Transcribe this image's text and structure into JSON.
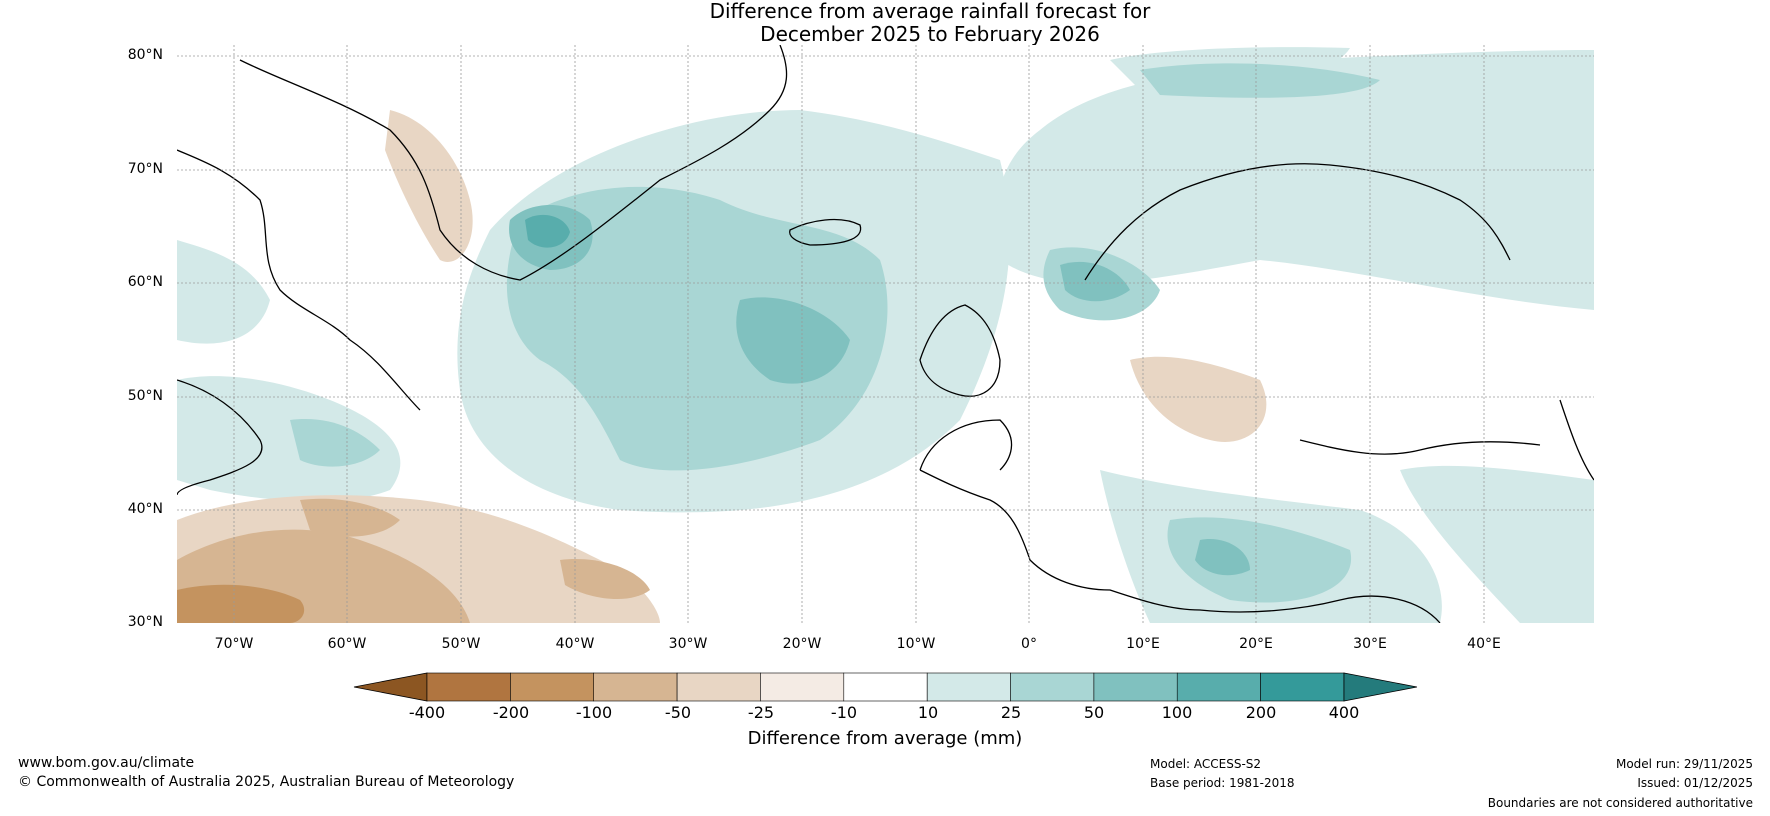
{
  "title": {
    "line1": "Difference from average rainfall forecast for",
    "line2": "December 2025 to February 2026"
  },
  "lat_labels": [
    "80°N",
    "70°N",
    "60°N",
    "50°N",
    "40°N",
    "30°N"
  ],
  "lon_labels": [
    "70°W",
    "60°W",
    "50°W",
    "40°W",
    "30°W",
    "20°W",
    "10°W",
    "0°",
    "10°E",
    "20°E",
    "30°E",
    "40°E"
  ],
  "colorbar": {
    "ticks": [
      "-400",
      "-200",
      "-100",
      "-50",
      "-25",
      "-10",
      "10",
      "25",
      "50",
      "100",
      "200",
      "400"
    ],
    "colors": [
      "#8c5622",
      "#b07540",
      "#c4935f",
      "#d6b592",
      "#e8d6c4",
      "#f4ebe4",
      "#ffffff",
      "#d3e9e8",
      "#a9d6d4",
      "#80c1bf",
      "#58adac",
      "#349a9a",
      "#247b7c"
    ],
    "label": "Difference from average (mm)"
  },
  "footer": {
    "url": "www.bom.gov.au/climate",
    "copyright": "© Commonwealth of Australia 2025, Australian Bureau of Meteorology",
    "model": "Model: ACCESS-S2",
    "base_period": "Base period: 1981-2018",
    "model_run": "Model run: 29/11/2025",
    "issued": "Issued: 01/12/2025",
    "disclaimer": "Boundaries are not considered authoritative"
  }
}
